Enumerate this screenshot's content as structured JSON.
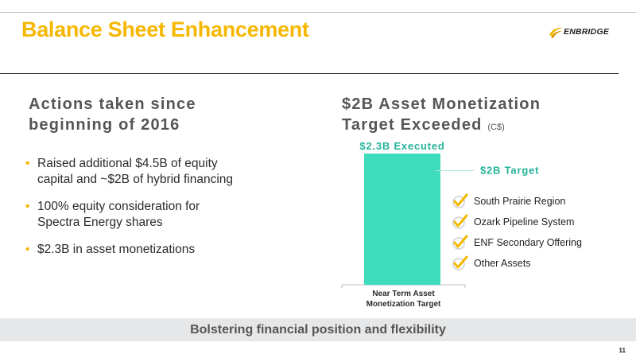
{
  "slide": {
    "title": "Balance Sheet Enhancement",
    "logo_text": "ENBRIDGE",
    "page_number": "11"
  },
  "left": {
    "heading_lines": [
      "Actions taken since",
      "beginning of 2016"
    ],
    "bullets": [
      {
        "lines": [
          "Raised additional $4.5B of equity",
          "capital and ~$2B of hybrid financing"
        ]
      },
      {
        "lines": [
          "100% equity consideration for",
          "Spectra Energy shares"
        ]
      },
      {
        "lines": [
          "$2.3B in asset monetizations"
        ]
      }
    ],
    "bullet_symbol": "•"
  },
  "right": {
    "heading_lines": [
      "$2B Asset Monetization",
      "Target Exceeded"
    ],
    "unit": "(C$)",
    "checklist": [
      "South Prairie Region",
      "Ozark Pipeline System",
      "ENF Secondary Offering",
      "Other Assets"
    ]
  },
  "chart_data": {
    "type": "bar",
    "categories": [
      "Near Term Asset Monetization Target"
    ],
    "values": [
      2.3
    ],
    "bar_label": "$2.3B Executed",
    "target_value": 2.0,
    "target_label": "$2B Target",
    "ylim": [
      0,
      2.3
    ],
    "grid": false,
    "colors": {
      "bar": "#3fdcbd",
      "label": "#26b39a",
      "target_line": "#aee9dc",
      "axis": "#bfbfbf"
    }
  },
  "footer": {
    "tagline": "Bolstering financial position and flexibility"
  },
  "colors": {
    "title": "#f5b700",
    "accent": "#f5b700",
    "check": "#f5b700",
    "footer_band": "#e6e7e8"
  },
  "icons": {
    "logo": "enbridge-logo-icon",
    "check": "checkmark-icon"
  }
}
